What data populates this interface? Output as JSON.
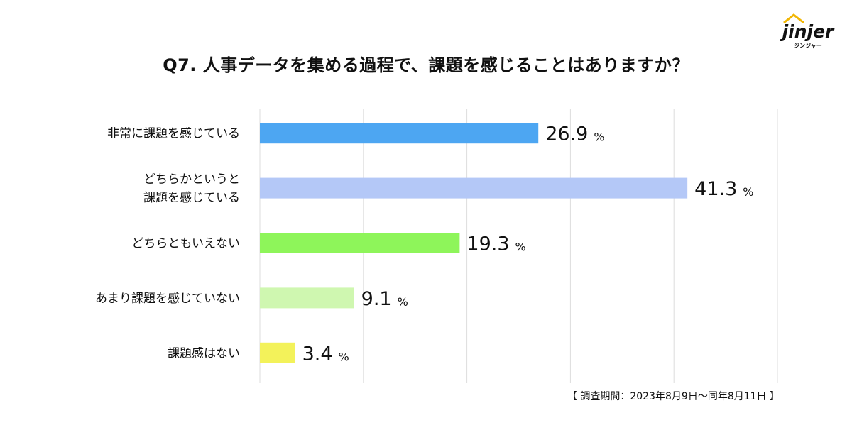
{
  "logo": {
    "text": "jinjer",
    "sub": "ジンジャー"
  },
  "note": "【 調査期間：2023年8月9日〜同年8月11日 】",
  "chart_data": {
    "type": "bar",
    "orientation": "horizontal",
    "title": "Q7. 人事データを集める過程で、課題を感じることはありますか？",
    "categories": [
      [
        "非常に課題を感じている"
      ],
      [
        "どちらかというと",
        "課題を感じている"
      ],
      [
        "どちらともいえない"
      ],
      [
        "あまり課題を感じていない"
      ],
      [
        "課題感はない"
      ]
    ],
    "values": [
      26.9,
      41.3,
      19.3,
      9.1,
      3.4
    ],
    "value_labels": [
      "26.9",
      "41.3",
      "19.3",
      "9.1",
      "3.4"
    ],
    "unit": "%",
    "colors": [
      "#4da6f2",
      "#b4c8f7",
      "#8ef55a",
      "#cff7b0",
      "#f3f25a"
    ],
    "xlim": [
      0,
      50
    ],
    "grid": true,
    "legend": "none"
  }
}
